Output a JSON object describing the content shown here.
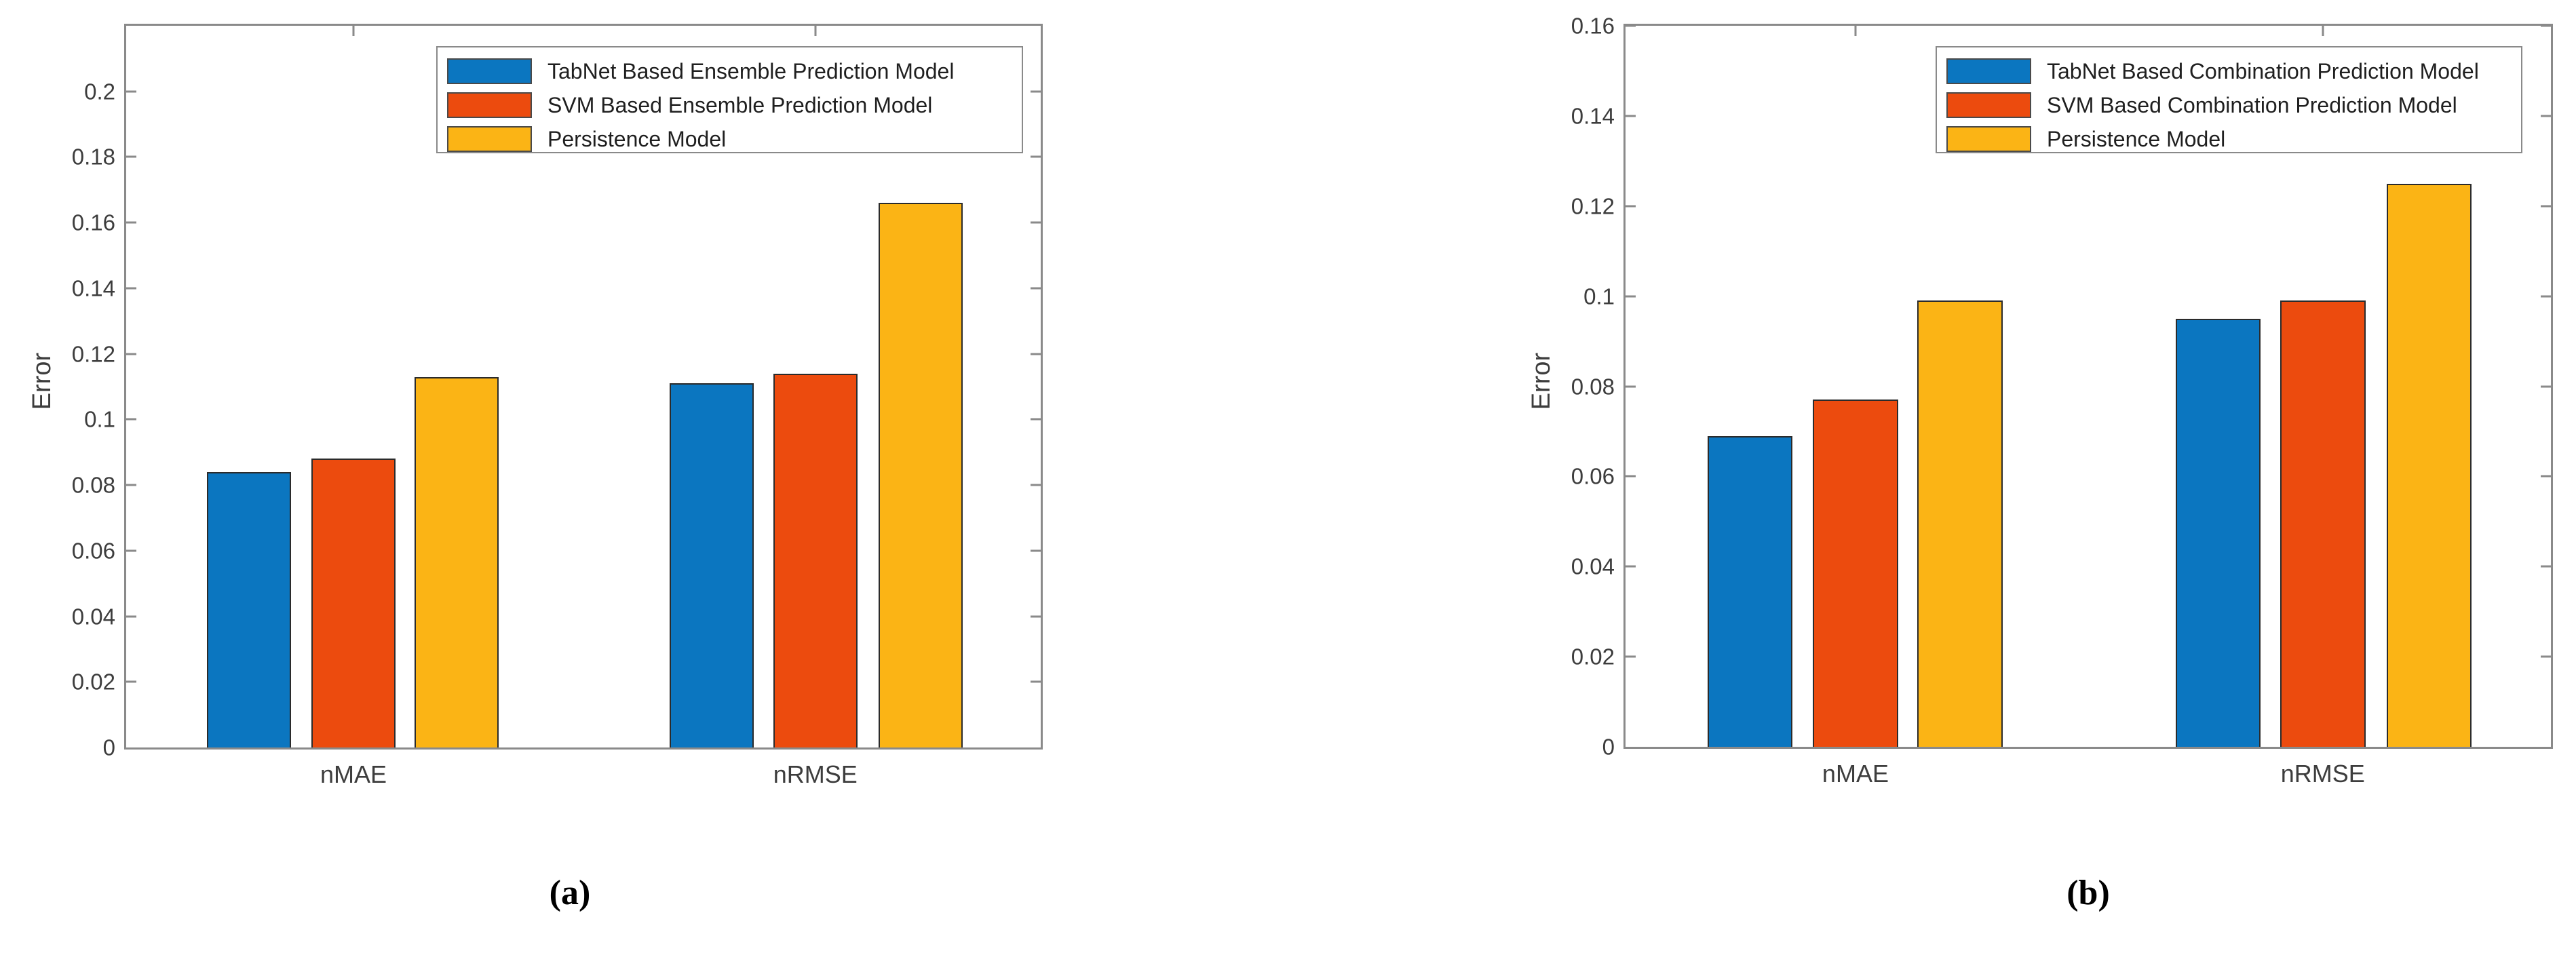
{
  "figure": {
    "background": "#ffffff",
    "panels": [
      "(a)",
      "(b)"
    ]
  },
  "chart_data": [
    {
      "type": "bar",
      "panel": "a",
      "caption": "(a)",
      "title": "",
      "xlabel": "",
      "ylabel": "Error",
      "categories": [
        "nMAE",
        "nRMSE"
      ],
      "series": [
        {
          "name": "TabNet Based Ensemble Prediction Model",
          "color": "#0B76C0",
          "values": [
            0.084,
            0.111
          ]
        },
        {
          "name": "SVM Based Ensemble Prediction Model",
          "color": "#EC4B0E",
          "values": [
            0.088,
            0.114
          ]
        },
        {
          "name": "Persistence Model",
          "color": "#FBB415",
          "values": [
            0.113,
            0.166
          ]
        }
      ],
      "ylim": [
        0,
        0.22
      ],
      "ytick_step": 0.02,
      "yticks": [
        "0",
        "0.02",
        "0.04",
        "0.06",
        "0.08",
        "0.1",
        "0.12",
        "0.14",
        "0.16",
        "0.18",
        "0.2"
      ],
      "grid": false,
      "legend_position": "upper-center-inside"
    },
    {
      "type": "bar",
      "panel": "b",
      "caption": "(b)",
      "title": "",
      "xlabel": "",
      "ylabel": "Error",
      "categories": [
        "nMAE",
        "nRMSE"
      ],
      "series": [
        {
          "name": "TabNet Based Combination Prediction Model",
          "color": "#0B76C0",
          "values": [
            0.069,
            0.095
          ]
        },
        {
          "name": "SVM Based Combination Prediction Model",
          "color": "#EC4B0E",
          "values": [
            0.077,
            0.099
          ]
        },
        {
          "name": "Persistence Model",
          "color": "#FBB415",
          "values": [
            0.099,
            0.125
          ]
        }
      ],
      "ylim": [
        0,
        0.16
      ],
      "ytick_step": 0.02,
      "yticks": [
        "0",
        "0.02",
        "0.04",
        "0.06",
        "0.08",
        "0.1",
        "0.12",
        "0.14",
        "0.16"
      ],
      "grid": false,
      "legend_position": "upper-center-inside"
    }
  ]
}
